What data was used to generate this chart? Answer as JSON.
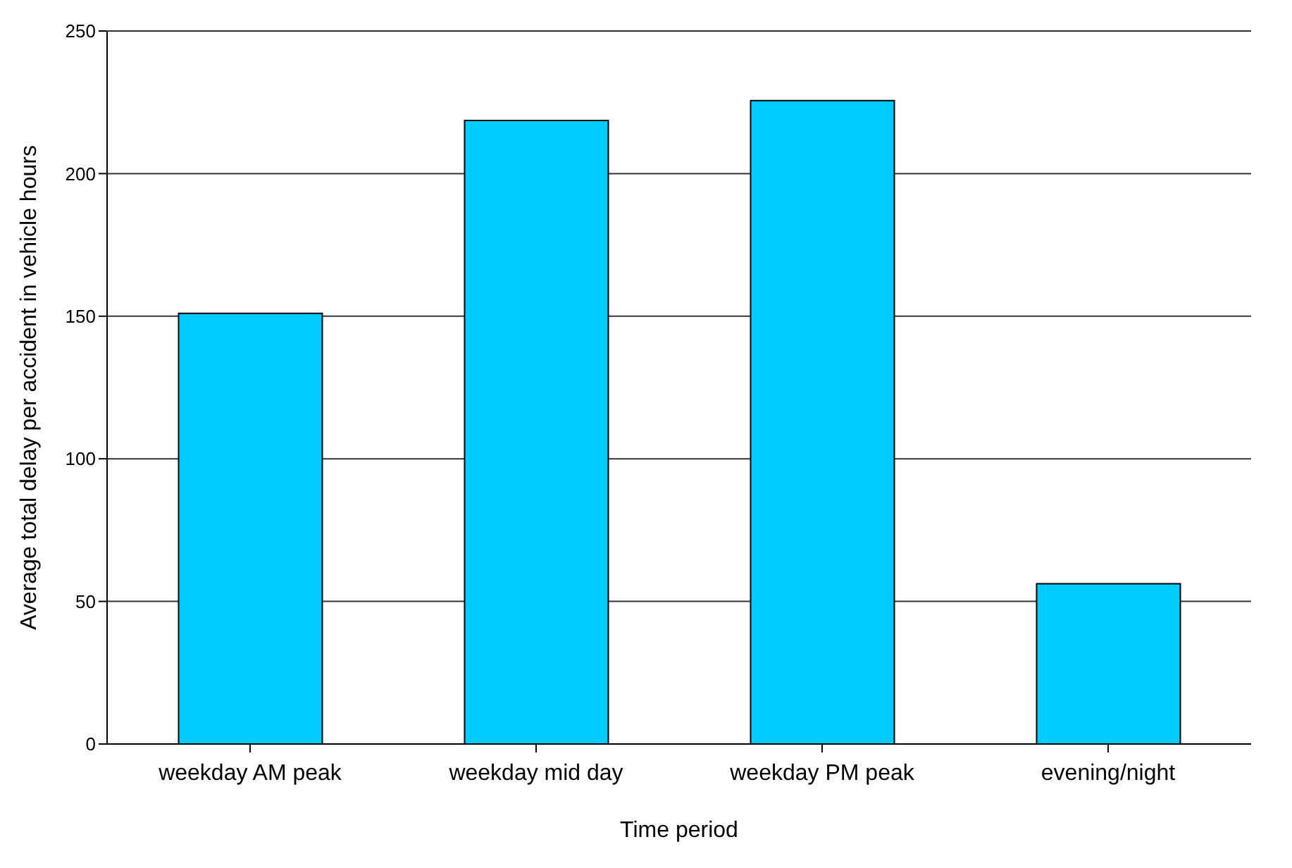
{
  "chart_data": {
    "type": "bar",
    "xlabel": "Time period",
    "ylabel": "Average total delay per accident in vehicle hours",
    "categories": [
      "weekday AM peak",
      "weekday mid day",
      "weekday PM peak",
      "evening/night"
    ],
    "values": [
      151,
      218.6,
      225.6,
      56.2
    ],
    "color": "#00ccff",
    "ylim": [
      0,
      250
    ],
    "yticks": [
      0,
      50,
      100,
      150,
      200,
      250
    ],
    "grid": "y"
  }
}
